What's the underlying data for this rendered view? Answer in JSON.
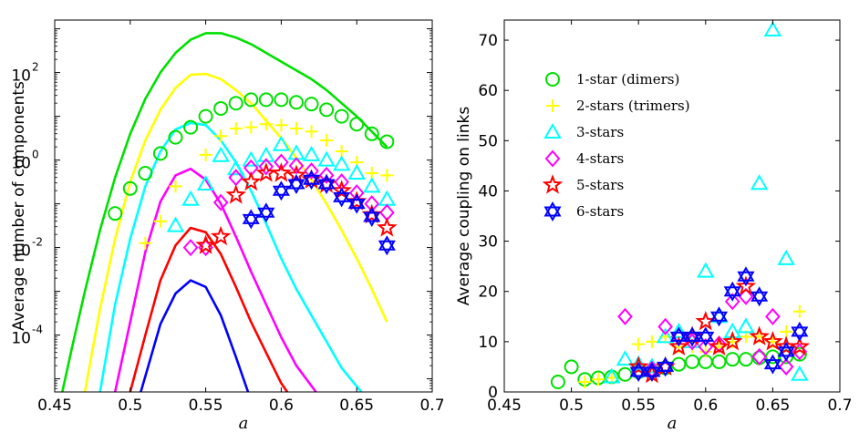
{
  "chart_data": [
    {
      "type": "line+scatter",
      "title": "",
      "xlabel": "a",
      "ylabel": "Average number of components",
      "xlim": [
        0.45,
        0.7
      ],
      "ylim_log10": [
        -5.3,
        3.2
      ],
      "yscale": "log",
      "xticks": [
        "0.45",
        "0.5",
        "0.55",
        "0.6",
        "0.65",
        "0.7"
      ],
      "xtick_values": [
        0.45,
        0.5,
        0.55,
        0.6,
        0.65,
        0.7
      ],
      "yticks_exp": [
        "-4",
        "-2",
        "0",
        "2"
      ],
      "ytick_values_log10": [
        -4,
        -2,
        0,
        2
      ],
      "ytick_base": "10",
      "curves": [
        {
          "name": "1-star (dimers)",
          "color": "#00e000",
          "x": [
            0.455,
            0.462,
            0.47,
            0.48,
            0.49,
            0.5,
            0.51,
            0.52,
            0.53,
            0.54,
            0.55,
            0.56,
            0.57,
            0.58,
            0.59,
            0.6,
            0.61,
            0.62,
            0.63,
            0.64,
            0.65,
            0.66,
            0.67
          ],
          "log10y": [
            -5.3,
            -4.2,
            -3.0,
            -1.6,
            -0.4,
            0.6,
            1.4,
            2.0,
            2.45,
            2.75,
            2.9,
            2.9,
            2.8,
            2.65,
            2.45,
            2.25,
            2.05,
            1.85,
            1.6,
            1.3,
            1.0,
            0.65,
            0.3
          ]
        },
        {
          "name": "2-stars (trimers)",
          "color": "#ffff00",
          "x": [
            0.47,
            0.48,
            0.49,
            0.5,
            0.51,
            0.52,
            0.53,
            0.54,
            0.55,
            0.56,
            0.57,
            0.58,
            0.59,
            0.6,
            0.61,
            0.62,
            0.63,
            0.64,
            0.65,
            0.66,
            0.67
          ],
          "log10y": [
            -5.3,
            -3.4,
            -1.8,
            -0.5,
            0.45,
            1.15,
            1.65,
            1.95,
            1.97,
            1.85,
            1.6,
            1.3,
            0.9,
            0.5,
            0.05,
            -0.45,
            -1.0,
            -1.6,
            -2.25,
            -2.95,
            -3.7
          ]
        },
        {
          "name": "3-stars",
          "color": "#00ffff",
          "x": [
            0.48,
            0.49,
            0.5,
            0.51,
            0.52,
            0.53,
            0.54,
            0.55,
            0.56,
            0.57,
            0.58,
            0.59,
            0.6,
            0.61,
            0.62,
            0.63,
            0.64,
            0.653
          ],
          "log10y": [
            -5.3,
            -3.3,
            -1.8,
            -0.6,
            0.2,
            0.7,
            0.85,
            0.8,
            0.45,
            -0.05,
            -0.7,
            -1.45,
            -2.25,
            -2.95,
            -3.55,
            -4.15,
            -4.75,
            -5.3
          ]
        },
        {
          "name": "4-stars",
          "color": "#ff00ff",
          "x": [
            0.49,
            0.5,
            0.51,
            0.52,
            0.53,
            0.54,
            0.55,
            0.56,
            0.57,
            0.58,
            0.59,
            0.6,
            0.61,
            0.623
          ],
          "log10y": [
            -5.3,
            -3.7,
            -2.1,
            -0.95,
            -0.35,
            -0.2,
            -0.45,
            -1.0,
            -1.75,
            -2.55,
            -3.3,
            -4.05,
            -4.7,
            -5.3
          ]
        },
        {
          "name": "5-stars",
          "color": "#ff0000",
          "x": [
            0.5,
            0.51,
            0.52,
            0.53,
            0.54,
            0.55,
            0.56,
            0.57,
            0.58,
            0.59,
            0.6,
            0.604
          ],
          "log10y": [
            -5.3,
            -4.0,
            -2.75,
            -1.95,
            -1.55,
            -1.65,
            -2.15,
            -2.9,
            -3.7,
            -4.4,
            -5.1,
            -5.3
          ]
        },
        {
          "name": "6-stars",
          "color": "#0000ff",
          "x": [
            0.507,
            0.52,
            0.53,
            0.54,
            0.55,
            0.56,
            0.57,
            0.578
          ],
          "log10y": [
            -5.3,
            -3.75,
            -3.05,
            -2.75,
            -2.9,
            -3.55,
            -4.5,
            -5.3
          ]
        }
      ],
      "series": [
        {
          "name": "1-star (dimers)",
          "marker": "circle",
          "color": "#00e000",
          "x": [
            0.49,
            0.5,
            0.51,
            0.52,
            0.53,
            0.54,
            0.55,
            0.56,
            0.57,
            0.58,
            0.59,
            0.6,
            0.61,
            0.62,
            0.63,
            0.64,
            0.65,
            0.66,
            0.67
          ],
          "log10y": [
            -1.22,
            -0.65,
            -0.3,
            0.15,
            0.52,
            0.75,
            1.0,
            1.18,
            1.3,
            1.38,
            1.38,
            1.38,
            1.32,
            1.28,
            1.15,
            1.0,
            0.82,
            0.6,
            0.42
          ]
        },
        {
          "name": "2-stars (trimers)",
          "marker": "plus",
          "color": "#ffff00",
          "x": [
            0.51,
            0.52,
            0.53,
            0.55,
            0.56,
            0.57,
            0.58,
            0.59,
            0.6,
            0.61,
            0.62,
            0.63,
            0.64,
            0.65,
            0.66,
            0.67
          ],
          "log10y": [
            -1.9,
            -1.4,
            -0.6,
            0.12,
            0.55,
            0.72,
            0.75,
            0.82,
            0.8,
            0.72,
            0.65,
            0.45,
            0.2,
            -0.05,
            -0.3,
            -0.35
          ]
        },
        {
          "name": "3-stars",
          "marker": "triangle",
          "color": "#00ffff",
          "x": [
            0.53,
            0.54,
            0.55,
            0.56,
            0.57,
            0.58,
            0.59,
            0.6,
            0.61,
            0.62,
            0.63,
            0.64,
            0.65,
            0.66,
            0.67
          ],
          "log10y": [
            -1.5,
            -0.9,
            -0.55,
            0.1,
            -0.2,
            0.0,
            0.1,
            0.35,
            0.15,
            0.12,
            0.0,
            -0.1,
            -0.3,
            -0.6,
            -0.9
          ]
        },
        {
          "name": "4-stars",
          "marker": "diamond",
          "color": "#ff00ff",
          "x": [
            0.54,
            0.55,
            0.56,
            0.57,
            0.58,
            0.59,
            0.6,
            0.61,
            0.62,
            0.63,
            0.64,
            0.65,
            0.66,
            0.67
          ],
          "log10y": [
            -2.0,
            -2.0,
            -0.97,
            -0.4,
            -0.18,
            -0.15,
            -0.05,
            -0.13,
            -0.25,
            -0.35,
            -0.5,
            -0.75,
            -1.0,
            -1.2
          ]
        },
        {
          "name": "5-stars",
          "marker": "star5",
          "color": "#ff0000",
          "x": [
            0.55,
            0.56,
            0.57,
            0.58,
            0.59,
            0.6,
            0.61,
            0.62,
            0.63,
            0.64,
            0.65,
            0.66,
            0.67
          ],
          "log10y": [
            -1.95,
            -1.75,
            -0.8,
            -0.5,
            -0.3,
            -0.3,
            -0.35,
            -0.45,
            -0.55,
            -0.7,
            -0.95,
            -1.25,
            -1.55
          ]
        },
        {
          "name": "6-stars",
          "marker": "star6",
          "color": "#0000ff",
          "x": [
            0.58,
            0.59,
            0.6,
            0.61,
            0.62,
            0.63,
            0.64,
            0.65,
            0.66,
            0.67
          ],
          "log10y": [
            -1.35,
            -1.2,
            -0.7,
            -0.55,
            -0.45,
            -0.55,
            -0.85,
            -1.0,
            -1.3,
            -1.95
          ]
        }
      ]
    },
    {
      "type": "scatter",
      "title": "",
      "xlabel": "a",
      "ylabel": "Average coupling on links",
      "xlim": [
        0.45,
        0.7
      ],
      "ylim": [
        0,
        74
      ],
      "xticks": [
        "0.45",
        "0.5",
        "0.55",
        "0.6",
        "0.65",
        "0.7"
      ],
      "xtick_values": [
        0.45,
        0.5,
        0.55,
        0.6,
        0.65,
        0.7
      ],
      "yticks": [
        "0",
        "10",
        "20",
        "30",
        "40",
        "50",
        "60",
        "70"
      ],
      "ytick_values": [
        0,
        10,
        20,
        30,
        40,
        50,
        60,
        70
      ],
      "legend_position": "top-left",
      "series": [
        {
          "name": "1-star (dimers)",
          "marker": "circle",
          "color": "#00e000",
          "x": [
            0.49,
            0.5,
            0.51,
            0.52,
            0.53,
            0.54,
            0.55,
            0.56,
            0.57,
            0.58,
            0.59,
            0.6,
            0.61,
            0.62,
            0.63,
            0.64,
            0.65,
            0.66,
            0.67
          ],
          "y": [
            2,
            5,
            2.5,
            2.8,
            3,
            3.5,
            4,
            4.2,
            4.8,
            5.5,
            6,
            6,
            6,
            6.5,
            6.5,
            6.8,
            7,
            7,
            7.5
          ]
        },
        {
          "name": "2-stars (trimers)",
          "marker": "plus",
          "color": "#ffff00",
          "x": [
            0.51,
            0.52,
            0.53,
            0.55,
            0.56,
            0.57,
            0.58,
            0.59,
            0.6,
            0.61,
            0.62,
            0.63,
            0.64,
            0.65,
            0.66,
            0.67
          ],
          "y": [
            2,
            2.5,
            2.8,
            9.5,
            10,
            11,
            9,
            9,
            8,
            9,
            10,
            11,
            11,
            10,
            12,
            16
          ]
        },
        {
          "name": "3-stars",
          "marker": "triangle",
          "color": "#00ffff",
          "x": [
            0.53,
            0.54,
            0.55,
            0.56,
            0.57,
            0.58,
            0.59,
            0.6,
            0.61,
            0.62,
            0.63,
            0.64,
            0.65,
            0.66,
            0.67
          ],
          "y": [
            3,
            6.5,
            5.5,
            5,
            11,
            12,
            10,
            24,
            15,
            12,
            13,
            41.5,
            72,
            26.5,
            3.5
          ]
        },
        {
          "name": "4-stars",
          "marker": "diamond",
          "color": "#ff00ff",
          "x": [
            0.54,
            0.55,
            0.56,
            0.57,
            0.58,
            0.59,
            0.6,
            0.61,
            0.62,
            0.63,
            0.64,
            0.65,
            0.66,
            0.67
          ],
          "y": [
            15,
            4,
            4.5,
            13,
            11,
            10,
            9,
            9.5,
            18,
            19,
            7,
            15,
            5,
            8
          ]
        },
        {
          "name": "5-stars",
          "marker": "star5",
          "color": "#ff0000",
          "x": [
            0.55,
            0.56,
            0.57,
            0.58,
            0.59,
            0.6,
            0.61,
            0.62,
            0.63,
            0.64,
            0.65,
            0.66,
            0.67
          ],
          "y": [
            5,
            3.5,
            5,
            9,
            11,
            14,
            9,
            10,
            21,
            11,
            10,
            9,
            9
          ]
        },
        {
          "name": "6-stars",
          "marker": "star6",
          "color": "#0000ff",
          "x": [
            0.55,
            0.56,
            0.57,
            0.58,
            0.59,
            0.6,
            0.61,
            0.62,
            0.63,
            0.64,
            0.65,
            0.66,
            0.67
          ],
          "y": [
            4,
            4,
            5,
            11,
            11,
            11,
            15,
            20,
            23,
            19,
            5.5,
            8,
            12
          ]
        }
      ]
    }
  ],
  "legend": {
    "items": [
      {
        "label": "1-star (dimers)",
        "marker": "circle",
        "color": "#00e000"
      },
      {
        "label": "2-stars (trimers)",
        "marker": "plus",
        "color": "#ffff00"
      },
      {
        "label": "3-stars",
        "marker": "triangle",
        "color": "#00ffff"
      },
      {
        "label": "4-stars",
        "marker": "diamond",
        "color": "#ff00ff"
      },
      {
        "label": "5-stars",
        "marker": "star5",
        "color": "#ff0000"
      },
      {
        "label": "6-stars",
        "marker": "star6",
        "color": "#0000ff"
      }
    ]
  }
}
